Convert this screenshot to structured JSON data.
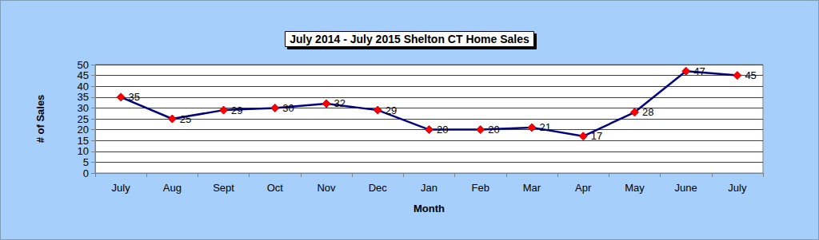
{
  "chart_data": {
    "type": "line",
    "title": "July 2014 - July 2015 Shelton CT Home Sales",
    "x_label": "Month",
    "y_label": "# of Sales",
    "categories": [
      "July",
      "Aug",
      "Sept",
      "Oct",
      "Nov",
      "Dec",
      "Jan",
      "Feb",
      "Mar",
      "Apr",
      "May",
      "June",
      "July"
    ],
    "values": [
      35,
      25,
      29,
      30,
      32,
      29,
      20,
      20,
      21,
      17,
      28,
      47,
      45
    ],
    "color": "#000080",
    "marker": "diamond",
    "ylim": [
      0,
      50
    ],
    "yticks": [
      0,
      5,
      10,
      15,
      20,
      25,
      30,
      35,
      40,
      45,
      50
    ],
    "grid": true,
    "data_labels": true
  }
}
